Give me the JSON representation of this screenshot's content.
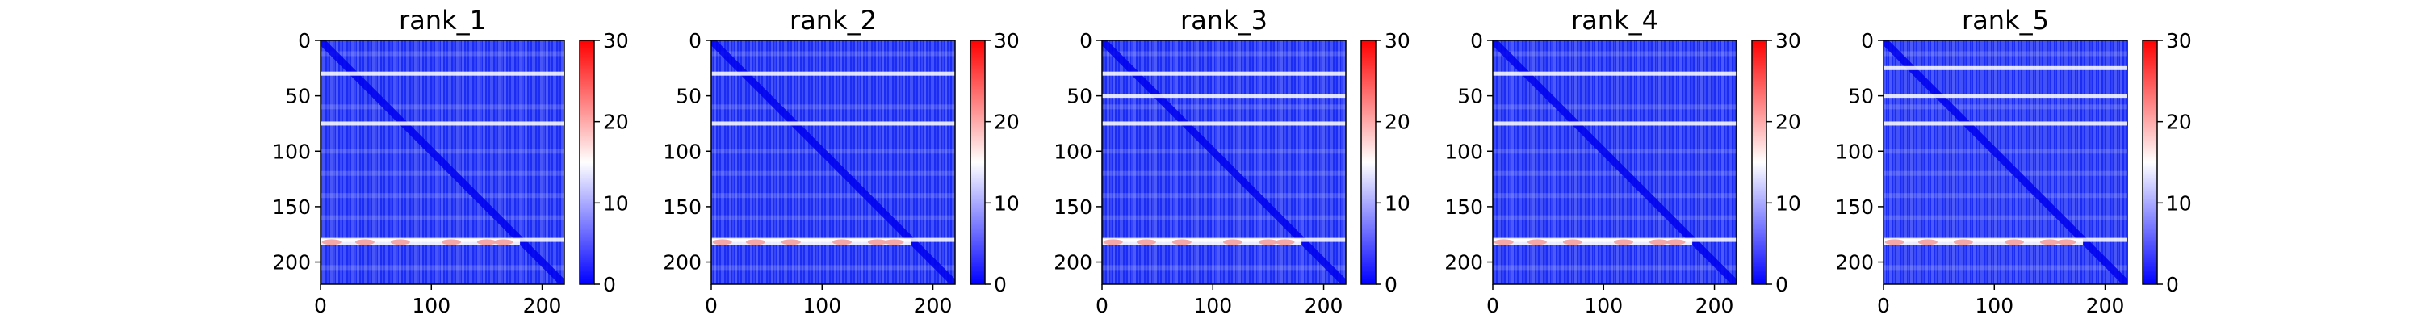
{
  "chart_data": {
    "type": "heatmap",
    "colormap": {
      "low": "#0000ff",
      "mid": "#ffffff",
      "high": "#ff0000"
    },
    "vmin": 0,
    "vmax": 30,
    "matrix_size": 220,
    "grid": false,
    "panels": [
      {
        "title": "rank_1",
        "stripe_rows": [
          30,
          75,
          180
        ],
        "hot_row": 182
      },
      {
        "title": "rank_2",
        "stripe_rows": [
          30,
          75,
          180
        ],
        "hot_row": 182
      },
      {
        "title": "rank_3",
        "stripe_rows": [
          30,
          50,
          75,
          180
        ],
        "hot_row": 182
      },
      {
        "title": "rank_4",
        "stripe_rows": [
          30,
          75,
          180
        ],
        "hot_row": 182
      },
      {
        "title": "rank_5",
        "stripe_rows": [
          25,
          50,
          75,
          180
        ],
        "hot_row": 182
      }
    ],
    "x_ticks": [
      0,
      100,
      200
    ],
    "y_ticks": [
      0,
      50,
      100,
      150,
      200
    ],
    "xlim": [
      0,
      220
    ],
    "ylim": [
      220,
      0
    ],
    "colorbar_ticks": [
      0,
      10,
      20,
      30
    ]
  }
}
